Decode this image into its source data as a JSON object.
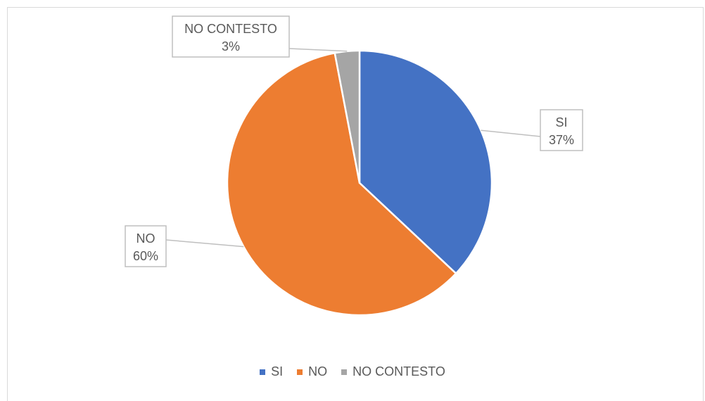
{
  "chart_data": {
    "type": "pie",
    "categories": [
      "SI",
      "NO",
      "NO CONTESTO"
    ],
    "values": [
      37,
      60,
      3
    ],
    "data_labels": [
      "37%",
      "60%",
      "3%"
    ],
    "colors": [
      "#4472C4",
      "#ED7D31",
      "#A5A5A5"
    ],
    "legend_position": "bottom",
    "data_label_style": "callout-with-leader-lines"
  }
}
